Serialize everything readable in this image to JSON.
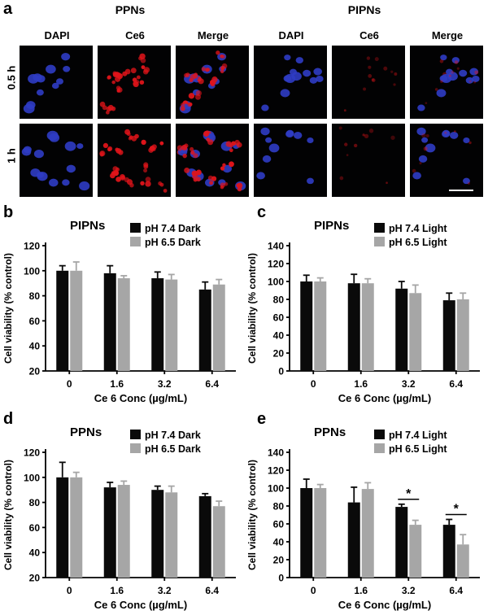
{
  "panel_a": {
    "letter": "a",
    "groups": [
      "PPNs",
      "PIPNs"
    ],
    "columns": [
      "DAPI",
      "Ce6",
      "Merge",
      "DAPI",
      "Ce6",
      "Merge"
    ],
    "rows": [
      "0.5 h",
      "1 h"
    ]
  },
  "chart_data": [
    {
      "panel": "b",
      "type": "bar",
      "title": "PIPNs",
      "categories": [
        "0",
        "1.6",
        "3.2",
        "6.4"
      ],
      "series": [
        {
          "name": "pH 7.4 Dark",
          "color": "#0a0a0a",
          "values": [
            100,
            98,
            94,
            85
          ],
          "errors": [
            4,
            6,
            5,
            6
          ]
        },
        {
          "name": "pH 6.5 Dark",
          "color": "#a6a6a6",
          "values": [
            100,
            94,
            93,
            89
          ],
          "errors": [
            7,
            2,
            4,
            4
          ]
        }
      ],
      "xlabel": "Ce 6 Conc (µg/mL)",
      "ylabel": "Cell viability (% control)",
      "ylim": [
        20,
        120
      ],
      "yticks": [
        20,
        40,
        60,
        80,
        100,
        120
      ],
      "legend": "top-right",
      "significance": []
    },
    {
      "panel": "c",
      "type": "bar",
      "title": "PIPNs",
      "categories": [
        "0",
        "1.6",
        "3.2",
        "6.4"
      ],
      "series": [
        {
          "name": "pH 7.4 Light",
          "color": "#0a0a0a",
          "values": [
            100,
            98,
            92,
            79
          ],
          "errors": [
            7,
            10,
            8,
            8
          ]
        },
        {
          "name": "pH 6.5 Light",
          "color": "#a6a6a6",
          "values": [
            100,
            98,
            87,
            80
          ],
          "errors": [
            4,
            5,
            9,
            7
          ]
        }
      ],
      "xlabel": "Ce 6 Conc (µg/mL)",
      "ylabel": "Cell viability (% control)",
      "ylim": [
        0,
        140
      ],
      "yticks": [
        0,
        20,
        40,
        60,
        80,
        100,
        120,
        140
      ],
      "legend": "top-right",
      "significance": []
    },
    {
      "panel": "d",
      "type": "bar",
      "title": "PPNs",
      "categories": [
        "0",
        "1.6",
        "3.2",
        "6.4"
      ],
      "series": [
        {
          "name": "pH 7.4 Dark",
          "color": "#0a0a0a",
          "values": [
            100,
            92,
            90,
            85
          ],
          "errors": [
            12,
            4,
            3,
            2
          ]
        },
        {
          "name": "pH 6.5 Dark",
          "color": "#a6a6a6",
          "values": [
            100,
            94,
            88,
            77
          ],
          "errors": [
            4,
            3,
            5,
            4
          ]
        }
      ],
      "xlabel": "Ce 6 Conc (µg/mL)",
      "ylabel": "Cell viability (% control)",
      "ylim": [
        20,
        120
      ],
      "yticks": [
        20,
        40,
        60,
        80,
        100,
        120
      ],
      "legend": "top-right",
      "significance": []
    },
    {
      "panel": "e",
      "type": "bar",
      "title": "PPNs",
      "categories": [
        "0",
        "1.6",
        "3.2",
        "6.4"
      ],
      "series": [
        {
          "name": "pH 7.4 Light",
          "color": "#0a0a0a",
          "values": [
            100,
            84,
            79,
            59
          ],
          "errors": [
            10,
            17,
            3,
            6
          ]
        },
        {
          "name": "pH 6.5 Light",
          "color": "#a6a6a6",
          "values": [
            100,
            99,
            59,
            37
          ],
          "errors": [
            4,
            7,
            5,
            11
          ]
        }
      ],
      "xlabel": "Ce 6 Conc (µg/mL)",
      "ylabel": "Cell viability (% control)",
      "ylim": [
        0,
        140
      ],
      "yticks": [
        0,
        20,
        40,
        60,
        80,
        100,
        120,
        140
      ],
      "legend": "top-right",
      "significance": [
        {
          "category": "3.2",
          "label": "*"
        },
        {
          "category": "6.4",
          "label": "*"
        }
      ]
    }
  ]
}
